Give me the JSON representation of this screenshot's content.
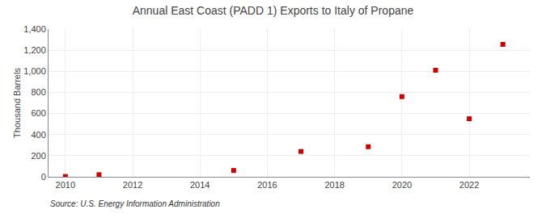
{
  "chart_data": {
    "type": "scatter",
    "title": "Annual East Coast (PADD 1) Exports to Italy of Propane",
    "ylabel": "Thousand Barrels",
    "annotations": [
      "Source: U.S. Energy Information Administration"
    ],
    "x": [
      2010,
      2011,
      2015,
      2017,
      2019,
      2020,
      2021,
      2022,
      2023
    ],
    "values": [
      3,
      20,
      60,
      240,
      285,
      760,
      1010,
      550,
      1255
    ],
    "color": "#cc0000",
    "marker": "square",
    "xlim": [
      2009.5,
      2023.8
    ],
    "xticks": [
      2010,
      2012,
      2014,
      2016,
      2018,
      2020,
      2022
    ],
    "ylim": [
      0,
      1400
    ],
    "yticks": [
      0,
      200,
      400,
      600,
      800,
      {
        "value": 1000,
        "label": "1,000"
      },
      {
        "value": 1200,
        "label": "1,200"
      },
      {
        "value": 1400,
        "label": "1,400"
      }
    ],
    "grid": true
  }
}
